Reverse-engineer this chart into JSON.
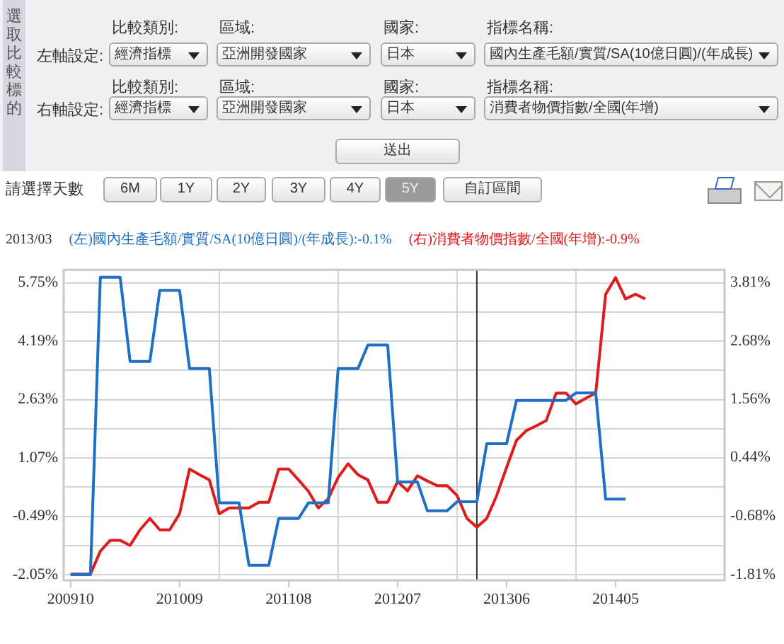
{
  "chart_data": {
    "type": "line",
    "annotations": [
      "2013/03",
      "選取比較標的",
      "比較類別:",
      "區域:",
      "國家:",
      "指標名稱:",
      "左軸設定:",
      "經濟指標",
      "亞洲開發國家",
      "日本",
      "國內生產毛額/實質/SA(10億日圓)/(年成長)",
      "比較類別:",
      "區域:",
      "國家:",
      "指標名稱:",
      "右軸設定:",
      "經濟指標",
      "亞洲開發國家",
      "日本",
      "消費者物價指數/全國(年增)",
      "送出",
      "請選擇天數",
      "6M",
      "1Y",
      "2Y",
      "3Y",
      "4Y",
      "5Y",
      "自訂區間"
    ],
    "series": [
      {
        "name": "(左)國內生產毛額/實質/SA(10億日圓)/(年成長):-0.1%",
        "color": "#1f6fc5",
        "x": [
          "2009-10",
          "2009-12",
          "2010-01",
          "2010-03",
          "2010-04",
          "2010-06",
          "2010-07",
          "2010-09",
          "2010-10",
          "2010-12",
          "2011-01",
          "2011-03",
          "2011-04",
          "2011-06",
          "2011-07",
          "2011-09",
          "2011-10",
          "2011-12",
          "2012-01",
          "2012-03",
          "2012-04",
          "2012-06",
          "2012-07",
          "2012-09",
          "2012-10",
          "2012-12",
          "2013-01",
          "2013-03",
          "2013-04",
          "2013-06",
          "2013-07",
          "2013-12",
          "2014-01",
          "2014-03",
          "2014-04",
          "2014-06"
        ],
        "values": [
          -2.05,
          -2.05,
          5.9,
          5.9,
          3.65,
          3.65,
          5.55,
          5.55,
          3.46,
          3.46,
          -0.13,
          -0.13,
          -1.8,
          -1.8,
          -0.55,
          -0.55,
          -0.13,
          -0.13,
          3.46,
          3.46,
          4.09,
          4.09,
          0.43,
          0.43,
          -0.34,
          -0.34,
          -0.1,
          -0.1,
          1.45,
          1.45,
          2.61,
          2.61,
          2.81,
          2.81,
          -0.03,
          -0.03
        ]
      },
      {
        "name": "(右)消費者物價指數/全國(年增):-0.9%",
        "color": "#e01b1b",
        "axis": "y2",
        "x": [
          "2009-10",
          "2009-11",
          "2009-12",
          "2010-01",
          "2010-02",
          "2010-03",
          "2010-04",
          "2010-05",
          "2010-06",
          "2010-07",
          "2010-08",
          "2010-09",
          "2010-10",
          "2010-11",
          "2010-12",
          "2011-01",
          "2011-02",
          "2011-03",
          "2011-04",
          "2011-05",
          "2011-06",
          "2011-07",
          "2011-08",
          "2011-09",
          "2011-10",
          "2011-11",
          "2011-12",
          "2012-01",
          "2012-02",
          "2012-03",
          "2012-04",
          "2012-05",
          "2012-06",
          "2012-07",
          "2012-08",
          "2012-09",
          "2012-10",
          "2012-11",
          "2012-12",
          "2013-01",
          "2013-02",
          "2013-03",
          "2013-04",
          "2013-05",
          "2013-06",
          "2013-07",
          "2013-08",
          "2013-09",
          "2013-10",
          "2013-11",
          "2013-12",
          "2014-01",
          "2014-02",
          "2014-03",
          "2014-04",
          "2014-05",
          "2014-06",
          "2014-07",
          "2014-08"
        ],
        "values": [
          -1.8,
          -1.8,
          -1.8,
          -1.36,
          -1.15,
          -1.15,
          -1.25,
          -0.95,
          -0.73,
          -0.95,
          -0.95,
          -0.64,
          0.22,
          0.11,
          0.01,
          -0.64,
          -0.53,
          -0.53,
          -0.53,
          -0.42,
          -0.42,
          0.22,
          0.22,
          0.01,
          -0.21,
          -0.53,
          -0.35,
          0.06,
          0.32,
          0.11,
          0.01,
          -0.42,
          -0.42,
          -0.02,
          -0.2,
          0.09,
          -0.01,
          -0.1,
          -0.1,
          -0.29,
          -0.73,
          -0.9,
          -0.73,
          -0.29,
          0.25,
          0.77,
          0.96,
          1.05,
          1.15,
          1.68,
          1.68,
          1.47,
          1.58,
          1.68,
          3.58,
          3.9,
          3.49,
          3.58,
          3.49
        ]
      }
    ],
    "xlim": [
      "2009-09-10",
      "2015-04"
    ],
    "xticks": [
      {
        "value": "2009-10",
        "label": "200910"
      },
      {
        "value": "2010-09",
        "label": "201009"
      },
      {
        "value": "2011-08",
        "label": "201108"
      },
      {
        "value": "2012-07",
        "label": "201207"
      },
      {
        "value": "2013-06",
        "label": "201306"
      },
      {
        "value": "2014-05",
        "label": "201405"
      }
    ],
    "ylim": [
      -2.2,
      6.1
    ],
    "yticks": [
      {
        "value": -2.05,
        "label": "-2.05%"
      },
      {
        "value": -1.27,
        "label": null
      },
      {
        "value": -0.49,
        "label": "-0.49%"
      },
      {
        "value": 0.29,
        "label": null
      },
      {
        "value": 1.07,
        "label": "1.07%"
      },
      {
        "value": 1.85,
        "label": null
      },
      {
        "value": 2.63,
        "label": "2.63%"
      },
      {
        "value": 3.41,
        "label": null
      },
      {
        "value": 4.19,
        "label": "4.19%"
      },
      {
        "value": 4.97,
        "label": null
      },
      {
        "value": 5.75,
        "label": "5.75%"
      }
    ],
    "y2lim": [
      -1.92,
      4.05
    ],
    "y2ticks": [
      {
        "value": -1.81,
        "label": "-1.81%"
      },
      {
        "value": -0.68,
        "label": "-0.68%"
      },
      {
        "value": 0.44,
        "label": "0.44%"
      },
      {
        "value": 1.56,
        "label": "1.56%"
      },
      {
        "value": 2.68,
        "label": "2.68%"
      },
      {
        "value": 3.81,
        "label": "3.81%"
      }
    ],
    "ref_lines": [
      {
        "axis": "x",
        "value": "2011-01",
        "color": "#d4d4d4"
      },
      {
        "axis": "x",
        "value": "2012-01",
        "color": "#d4d4d4"
      },
      {
        "axis": "x",
        "value": "2013-01",
        "color": "#d4d4d4"
      },
      {
        "axis": "x",
        "value": "2014-01",
        "color": "#d4d4d4"
      },
      {
        "axis": "x",
        "value": "2013-03",
        "color": "#333333"
      }
    ],
    "grid": "y",
    "legend": "top left",
    "marker": "none",
    "line_style": "solid"
  }
}
